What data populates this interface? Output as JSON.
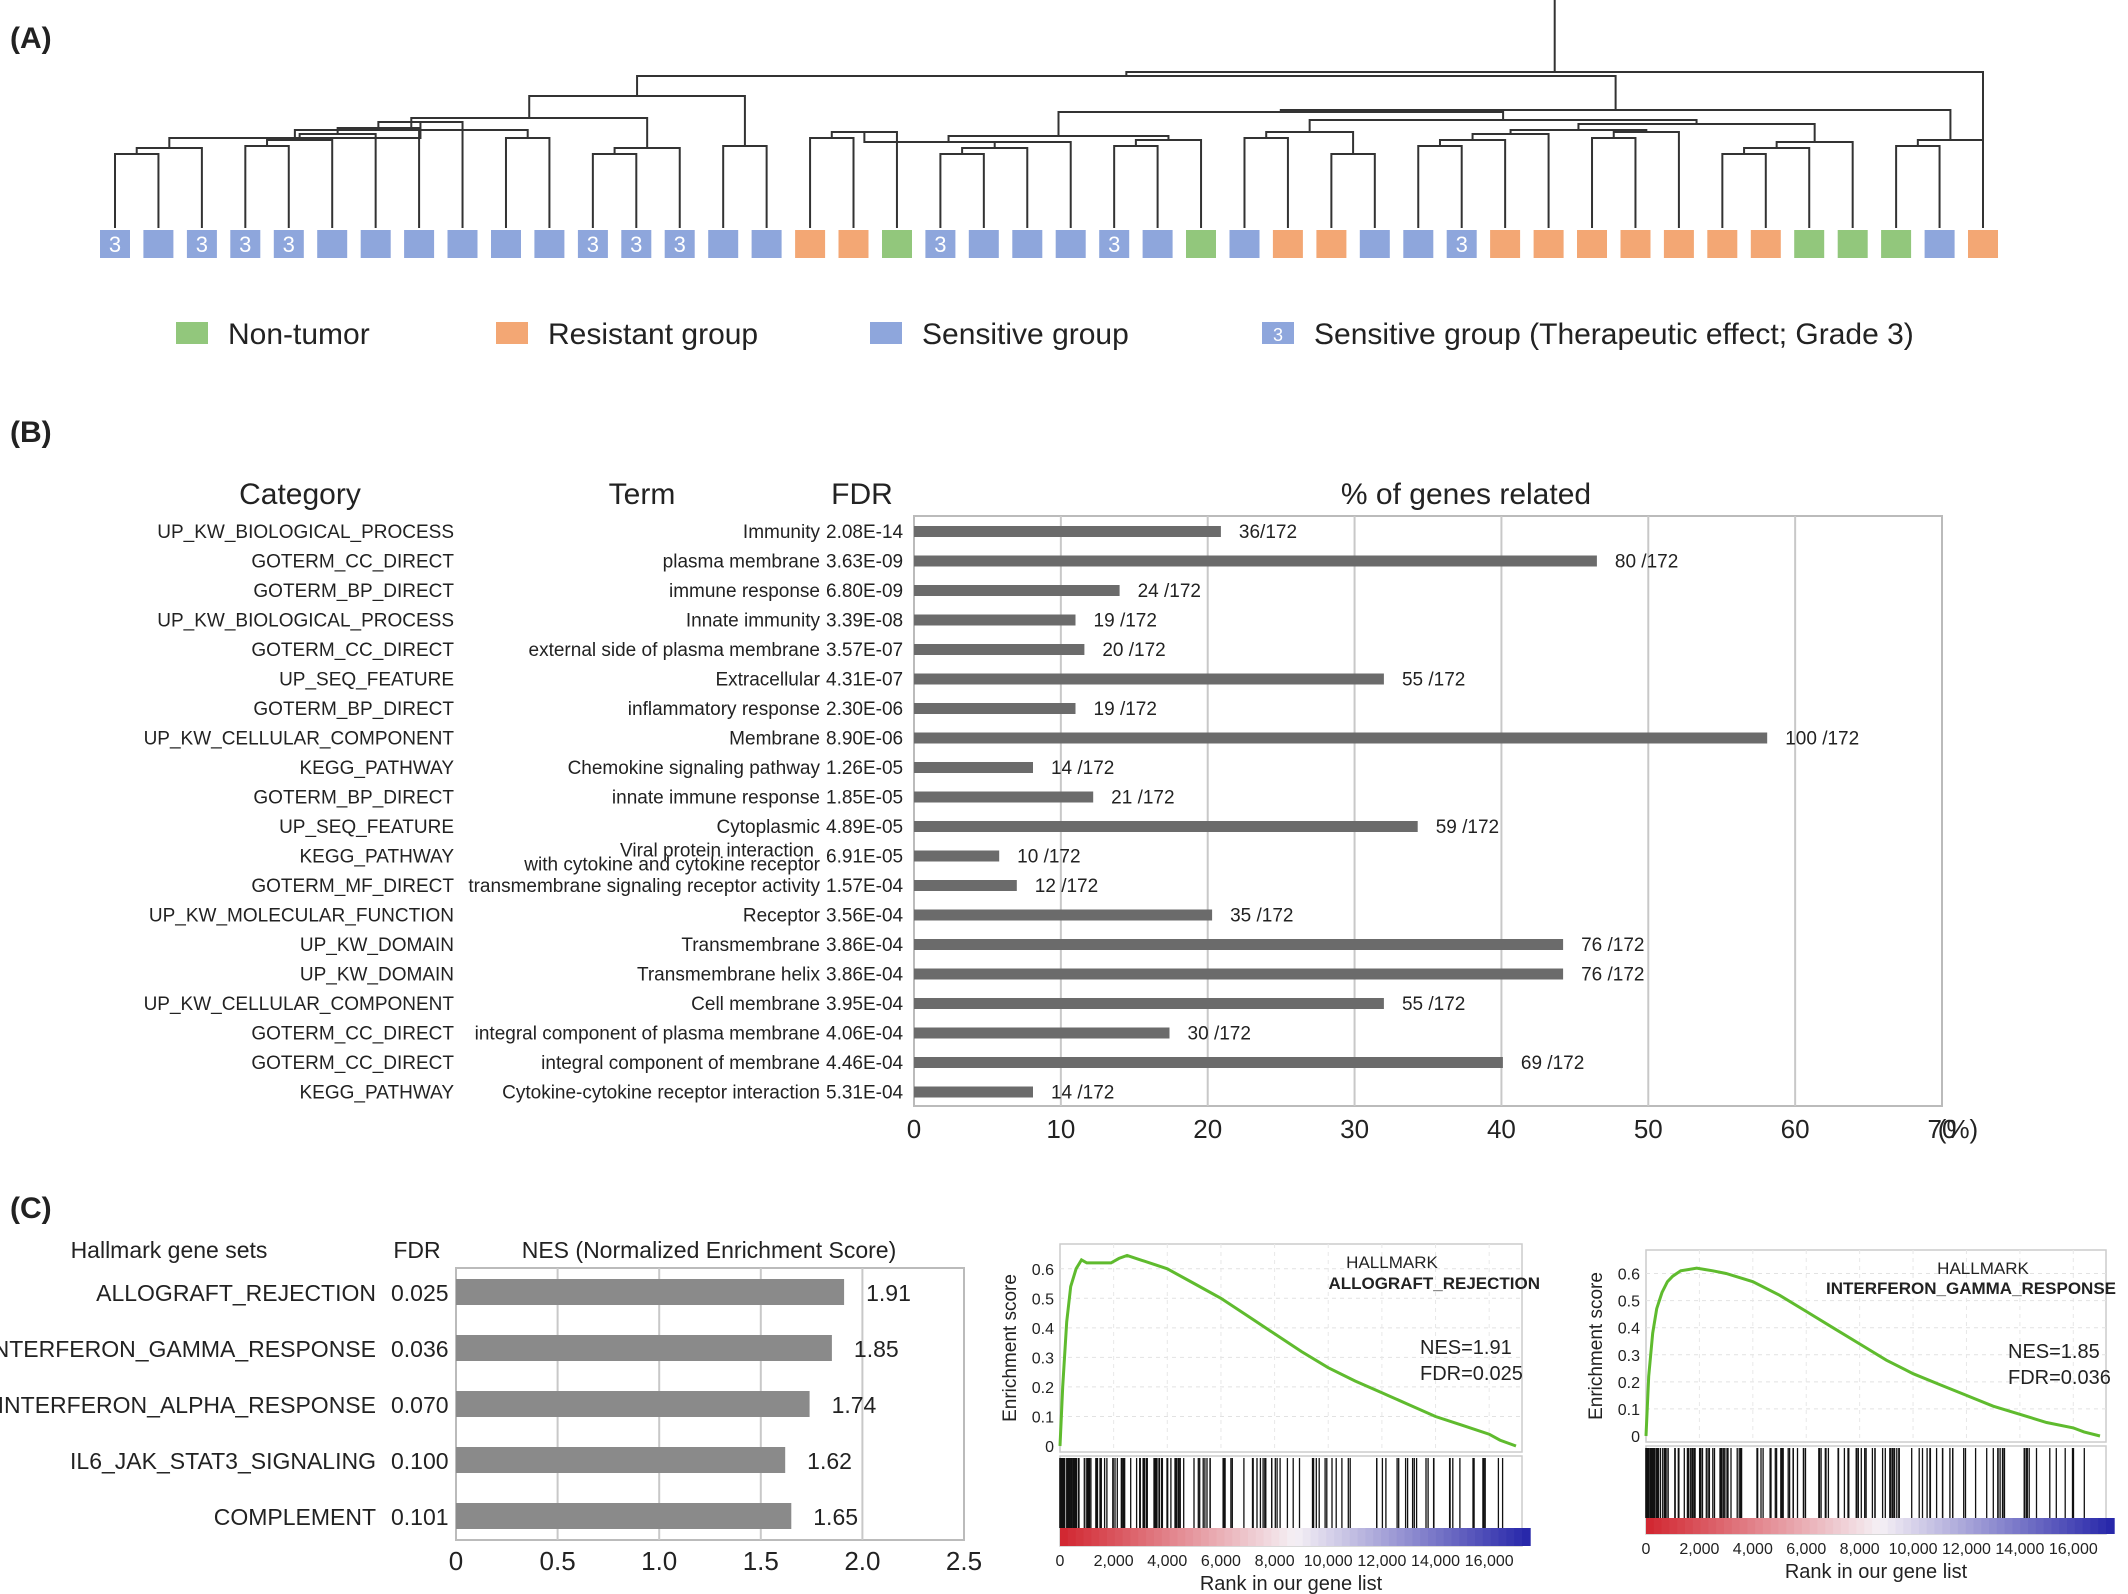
{
  "panels": {
    "a": "(A)",
    "b": "(B)",
    "c": "(C)"
  },
  "colors": {
    "non_tumor": "#92c77c",
    "resistant": "#f3a774",
    "sensitive": "#8ea6dc",
    "bar": "#6b6b6b",
    "bar_c": "#8a8a8a",
    "gsea_line": "#5fbb2e",
    "grid": "#c8c8c8"
  },
  "panel_a": {
    "legend": [
      {
        "key": "non_tumor",
        "label": "Non-tumor"
      },
      {
        "key": "resistant",
        "label": "Resistant group"
      },
      {
        "key": "sensitive",
        "label": "Sensitive group"
      },
      {
        "key": "grade3",
        "label": "Sensitive group (Therapeutic effect; Grade 3)",
        "mark": "3"
      }
    ],
    "samples": [
      "G3",
      "S",
      "G3",
      "G3",
      "G3",
      "S",
      "S",
      "S",
      "S",
      "S",
      "S",
      "G3",
      "G3",
      "G3",
      "S",
      "S",
      "R",
      "R",
      "N",
      "G3",
      "S",
      "S",
      "S",
      "G3",
      "S",
      "N",
      "S",
      "R",
      "R",
      "S",
      "S",
      "G3",
      "R",
      "R",
      "R",
      "R",
      "R",
      "R",
      "R",
      "N",
      "N",
      "N",
      "S",
      "R"
    ],
    "grade_mark": "3"
  },
  "chart_data": [
    {
      "type": "bar",
      "orientation": "horizontal",
      "headers": {
        "category": "Category",
        "term": "Term",
        "fdr": "FDR",
        "value": "% of genes related"
      },
      "xlim": [
        0,
        70
      ],
      "ticks": [
        "0",
        "10",
        "20",
        "30",
        "40",
        "50",
        "60",
        "70"
      ],
      "unit": "(%)",
      "grid": true,
      "rows": [
        {
          "category": "UP_KW_BIOLOGICAL_PROCESS",
          "term": "Immunity",
          "fdr": "2.08E-14",
          "pct": 20.9,
          "label": "36/172"
        },
        {
          "category": "GOTERM_CC_DIRECT",
          "term": "plasma membrane",
          "fdr": "3.63E-09",
          "pct": 46.5,
          "label": "80 /172"
        },
        {
          "category": "GOTERM_BP_DIRECT",
          "term": "immune response",
          "fdr": "6.80E-09",
          "pct": 14.0,
          "label": "24 /172"
        },
        {
          "category": "UP_KW_BIOLOGICAL_PROCESS",
          "term": "Innate immunity",
          "fdr": "3.39E-08",
          "pct": 11.0,
          "label": "19 /172"
        },
        {
          "category": "GOTERM_CC_DIRECT",
          "term": "external side of plasma membrane",
          "fdr": "3.57E-07",
          "pct": 11.6,
          "label": "20 /172"
        },
        {
          "category": "UP_SEQ_FEATURE",
          "term": "Extracellular",
          "fdr": "4.31E-07",
          "pct": 32.0,
          "label": "55 /172"
        },
        {
          "category": "GOTERM_BP_DIRECT",
          "term": "inflammatory response",
          "fdr": "2.30E-06",
          "pct": 11.0,
          "label": "19 /172"
        },
        {
          "category": "UP_KW_CELLULAR_COMPONENT",
          "term": "Membrane",
          "fdr": "8.90E-06",
          "pct": 58.1,
          "label": "100 /172"
        },
        {
          "category": "KEGG_PATHWAY",
          "term": "Chemokine signaling pathway",
          "fdr": "1.26E-05",
          "pct": 8.1,
          "label": "14 /172"
        },
        {
          "category": "GOTERM_BP_DIRECT",
          "term": "innate immune response",
          "fdr": "1.85E-05",
          "pct": 12.2,
          "label": "21 /172"
        },
        {
          "category": "UP_SEQ_FEATURE",
          "term": "Cytoplasmic",
          "fdr": "4.89E-05",
          "pct": 34.3,
          "label": "59 /172"
        },
        {
          "category": "KEGG_PATHWAY",
          "term": "Viral protein interaction",
          "term2": "with cytokine and cytokine receptor",
          "fdr": "6.91E-05",
          "pct": 5.8,
          "label": "10 /172"
        },
        {
          "category": "GOTERM_MF_DIRECT",
          "term": "transmembrane signaling receptor activity",
          "fdr": "1.57E-04",
          "pct": 7.0,
          "label": "12 /172"
        },
        {
          "category": "UP_KW_MOLECULAR_FUNCTION",
          "term": "Receptor",
          "fdr": "3.56E-04",
          "pct": 20.3,
          "label": "35 /172"
        },
        {
          "category": "UP_KW_DOMAIN",
          "term": "Transmembrane",
          "fdr": "3.86E-04",
          "pct": 44.2,
          "label": "76 /172"
        },
        {
          "category": "UP_KW_DOMAIN",
          "term": "Transmembrane helix",
          "fdr": "3.86E-04",
          "pct": 44.2,
          "label": "76 /172"
        },
        {
          "category": "UP_KW_CELLULAR_COMPONENT",
          "term": "Cell membrane",
          "fdr": "3.95E-04",
          "pct": 32.0,
          "label": "55 /172"
        },
        {
          "category": "GOTERM_CC_DIRECT",
          "term": "integral component of plasma membrane",
          "fdr": "4.06E-04",
          "pct": 17.4,
          "label": "30 /172"
        },
        {
          "category": "GOTERM_CC_DIRECT",
          "term": "integral component of membrane",
          "fdr": "4.46E-04",
          "pct": 40.1,
          "label": "69 /172"
        },
        {
          "category": "KEGG_PATHWAY",
          "term": "Cytokine-cytokine receptor interaction",
          "fdr": "5.31E-04",
          "pct": 8.1,
          "label": "14 /172"
        }
      ]
    },
    {
      "type": "bar",
      "orientation": "horizontal",
      "headers": {
        "set": "Hallmark gene sets",
        "fdr": "FDR",
        "value": "NES (Normalized Enrichment Score)"
      },
      "xlim": [
        0,
        2.5
      ],
      "ticks": [
        "0",
        "0.5",
        "1.0",
        "1.5",
        "2.0",
        "2.5"
      ],
      "grid": true,
      "rows": [
        {
          "set": "ALLOGRAFT_REJECTION",
          "fdr": "0.025",
          "nes": 1.91,
          "label": "1.91"
        },
        {
          "set": "INTERFERON_GAMMA_RESPONSE",
          "fdr": "0.036",
          "nes": 1.85,
          "label": "1.85"
        },
        {
          "set": "INTERFERON_ALPHA_RESPONSE",
          "fdr": "0.070",
          "nes": 1.74,
          "label": "1.74"
        },
        {
          "set": "IL6_JAK_STAT3_SIGNALING",
          "fdr": "0.100",
          "nes": 1.62,
          "label": "1.62"
        },
        {
          "set": "COMPLEMENT",
          "fdr": "0.101",
          "nes": 1.65,
          "label": "1.65"
        }
      ]
    },
    {
      "type": "line",
      "title1": "HALLMARK",
      "title2": "ALLOGRAFT_REJECTION",
      "nes_text": "NES=1.91",
      "fdr_text": "FDR=0.025",
      "ylabel": "Enrichment score",
      "xlabel": "Rank in our gene list",
      "xlim": [
        0,
        17000
      ],
      "ylim": [
        0,
        0.65
      ],
      "yticks": [
        "0",
        "0.1",
        "0.2",
        "0.3",
        "0.4",
        "0.5",
        "0.6"
      ],
      "xticks": [
        "0",
        "2,000",
        "4,000",
        "6,000",
        "8,000",
        "10,000",
        "12,000",
        "14,000",
        "16,000"
      ],
      "x": [
        0,
        100,
        250,
        400,
        600,
        800,
        1000,
        1300,
        1600,
        1900,
        2200,
        2500,
        3000,
        3500,
        4000,
        5000,
        6000,
        7000,
        8000,
        9000,
        10000,
        11000,
        12000,
        13000,
        14000,
        15000,
        16000,
        16400,
        17000
      ],
      "y": [
        0,
        0.2,
        0.42,
        0.54,
        0.6,
        0.63,
        0.62,
        0.62,
        0.62,
        0.62,
        0.635,
        0.645,
        0.63,
        0.615,
        0.6,
        0.55,
        0.5,
        0.44,
        0.38,
        0.32,
        0.265,
        0.22,
        0.18,
        0.14,
        0.1,
        0.07,
        0.04,
        0.02,
        0
      ]
    },
    {
      "type": "line",
      "title1": "HALLMARK",
      "title2": "INTERFERON_GAMMA_RESPONSE",
      "nes_text": "NES=1.85",
      "fdr_text": "FDR=0.036",
      "ylabel": "Enrichment score",
      "xlabel": "Rank in our gene list",
      "xlim": [
        0,
        17000
      ],
      "ylim": [
        0,
        0.65
      ],
      "yticks": [
        "0",
        "0.1",
        "0.2",
        "0.3",
        "0.4",
        "0.5",
        "0.6"
      ],
      "xticks": [
        "0",
        "2,000",
        "4,000",
        "6,000",
        "8,000",
        "10,000",
        "12,000",
        "14,000",
        "16,000"
      ],
      "x": [
        0,
        100,
        250,
        400,
        600,
        800,
        1000,
        1300,
        1600,
        1900,
        2200,
        2500,
        3000,
        3500,
        4000,
        5000,
        6000,
        7000,
        8000,
        9000,
        10000,
        11000,
        12000,
        13000,
        14000,
        15000,
        16000,
        16400,
        17000
      ],
      "y": [
        0,
        0.22,
        0.38,
        0.47,
        0.53,
        0.57,
        0.59,
        0.61,
        0.615,
        0.62,
        0.615,
        0.61,
        0.6,
        0.585,
        0.57,
        0.52,
        0.46,
        0.4,
        0.34,
        0.28,
        0.23,
        0.19,
        0.15,
        0.11,
        0.08,
        0.05,
        0.03,
        0.015,
        0
      ]
    }
  ]
}
